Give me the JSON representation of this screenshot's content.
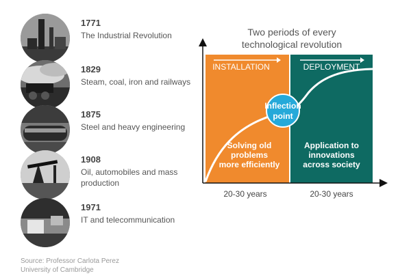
{
  "revolutions": [
    {
      "year": "1771",
      "label": "The Industrial Revolution",
      "photo": "industrial-chimney-photo"
    },
    {
      "year": "1829",
      "label": "Steam, coal, iron and railways",
      "photo": "steam-railway-photo"
    },
    {
      "year": "1875",
      "label": "Steel and heavy engineering",
      "photo": "steel-pipe-photo"
    },
    {
      "year": "1908",
      "label": "Oil, automobiles and mass production",
      "photo": "oil-pump-photo"
    },
    {
      "year": "1971",
      "label": "IT and telecommunication",
      "photo": "telecom-photo"
    }
  ],
  "source": {
    "line1": "Source: Professor Carlota Perez",
    "line2": "University of Cambridge"
  },
  "diagram": {
    "title_line1": "Two periods of every",
    "title_line2": "technological revolution",
    "installation": {
      "header": "INSTALLATION",
      "text_line1": "Solving old",
      "text_line2": "problems",
      "text_line3": "more efficiently",
      "duration": "20-30 years",
      "color": "#f08a2d"
    },
    "deployment": {
      "header": "DEPLOYMENT",
      "text_line1": "Application to",
      "text_line2": "innovations",
      "text_line3": "across society",
      "duration": "20-30 years",
      "color": "#0e6a62"
    },
    "inflection": {
      "line1": "Inflection",
      "line2": "point",
      "color": "#25a9d9"
    }
  }
}
